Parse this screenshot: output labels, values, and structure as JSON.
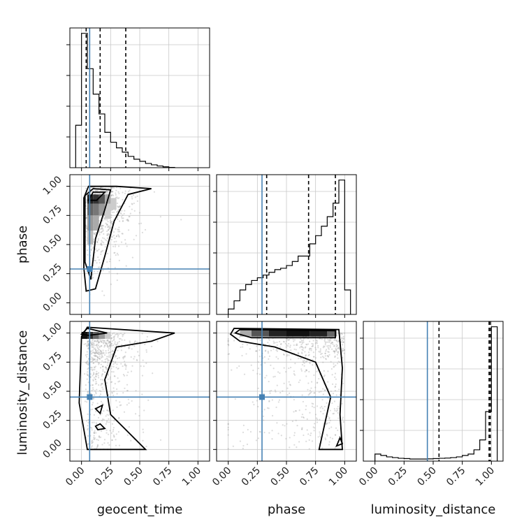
{
  "chart_data": {
    "type": "corner",
    "parameters": [
      "geocent_time",
      "phase",
      "luminosity_distance"
    ],
    "x_ticks": [
      "0.00",
      "0.25",
      "0.50",
      "0.75",
      "1.00"
    ],
    "y_ticks": [
      "0.00",
      "0.25",
      "0.50",
      "0.75",
      "1.00"
    ],
    "truths": {
      "geocent_time": 0.07,
      "phase": 0.29,
      "luminosity_distance": 0.45
    },
    "truth_color": "#4682b4",
    "quantiles": {
      "geocent_time": [
        0.04,
        0.16,
        0.38
      ],
      "phase": [
        0.33,
        0.69,
        0.92
      ],
      "luminosity_distance": [
        0.55,
        0.98,
        0.99
      ]
    },
    "histograms": [
      {
        "parameter": "geocent_time",
        "bin_edges_start": -0.05,
        "bin_width": 0.05,
        "counts": [
          0.3,
          0.95,
          0.7,
          0.52,
          0.38,
          0.25,
          0.18,
          0.14,
          0.11,
          0.08,
          0.06,
          0.045,
          0.03,
          0.02,
          0.012,
          0.006,
          0.002
        ]
      },
      {
        "parameter": "phase",
        "bin_edges_start": 0.0,
        "bin_width": 0.05,
        "counts": [
          0.04,
          0.1,
          0.18,
          0.22,
          0.25,
          0.27,
          0.29,
          0.31,
          0.33,
          0.34,
          0.36,
          0.39,
          0.43,
          0.43,
          0.52,
          0.58,
          0.65,
          0.72,
          0.82,
          0.99,
          0.18
        ]
      },
      {
        "parameter": "luminosity_distance",
        "bin_edges_start": 0.0,
        "bin_width": 0.05,
        "counts": [
          0.05,
          0.04,
          0.03,
          0.025,
          0.02,
          0.018,
          0.015,
          0.015,
          0.015,
          0.016,
          0.018,
          0.02,
          0.022,
          0.025,
          0.03,
          0.04,
          0.05,
          0.08,
          0.15,
          0.35,
          0.95
        ]
      }
    ],
    "density_panels": [
      {
        "x": "geocent_time",
        "y": "phase"
      },
      {
        "x": "geocent_time",
        "y": "luminosity_distance"
      },
      {
        "x": "phase",
        "y": "luminosity_distance"
      }
    ],
    "grid": true
  }
}
